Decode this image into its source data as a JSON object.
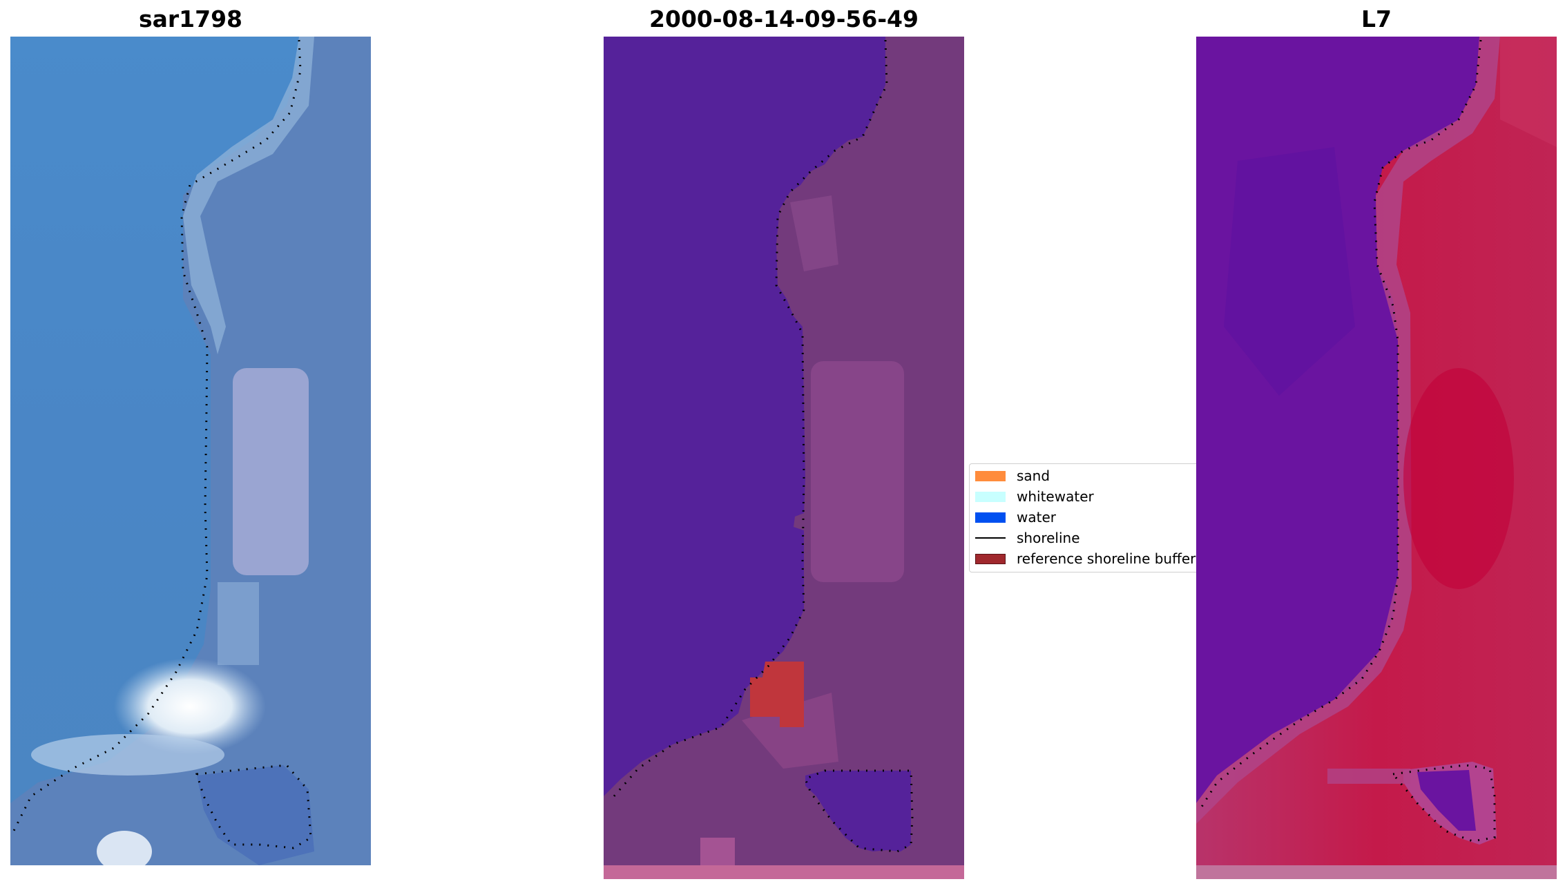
{
  "panels": [
    {
      "title": "sar1798"
    },
    {
      "title": "2000-08-14-09-56-49"
    },
    {
      "title": "L7"
    }
  ],
  "legend": {
    "items": [
      {
        "label": "sand",
        "color": "#ff8c3c",
        "kind": "patch"
      },
      {
        "label": "whitewater",
        "color": "#c8ffff",
        "kind": "patch"
      },
      {
        "label": "water",
        "color": "#0050f0",
        "kind": "patch"
      },
      {
        "label": "shoreline",
        "color": "#000000",
        "kind": "line"
      },
      {
        "label": "reference shoreline buffer",
        "color": "#a0282d",
        "kind": "patch"
      }
    ]
  },
  "colors": {
    "rgb_water": "#4a88c8",
    "rgb_land": "#5c84bc",
    "class_water": "#55229a",
    "class_land": "#733a7c",
    "class_buffer": "#c0363c",
    "mndwi_water": "#6a14a0",
    "mndwi_land": "#c01c4c"
  }
}
